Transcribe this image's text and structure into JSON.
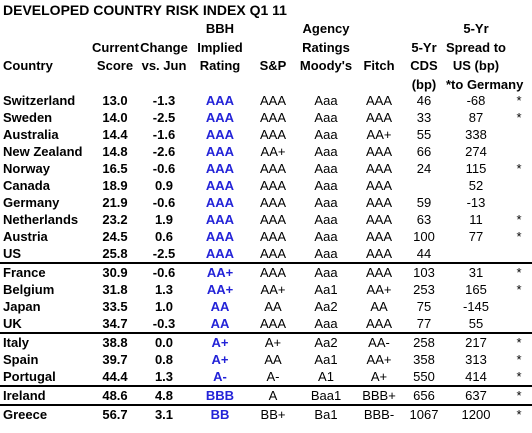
{
  "title": "DEVELOPED COUNTRY RISK INDEX Q1 11",
  "header": {
    "group_label": [
      "Agency",
      "Ratings"
    ],
    "columns": [
      [
        "Country"
      ],
      [
        "Current",
        "Score"
      ],
      [
        "Change",
        "vs. Jun"
      ],
      [
        "BBH",
        "Implied",
        "Rating"
      ],
      [
        "S&P"
      ],
      [
        "Moody's"
      ],
      [
        "Fitch"
      ],
      [
        "5-Yr",
        "CDS",
        "(bp)"
      ],
      [
        "5-Yr",
        "Spread to",
        "US (bp)",
        "*to Germany"
      ]
    ]
  },
  "table": {
    "groups": [
      {
        "rows": [
          [
            "Switzerland",
            "13.0",
            "-1.3",
            "AAA",
            "AAA",
            "Aaa",
            "AAA",
            "46",
            "-68",
            "*"
          ],
          [
            "Sweden",
            "14.0",
            "-2.5",
            "AAA",
            "AAA",
            "Aaa",
            "AAA",
            "33",
            "87",
            "*"
          ],
          [
            "Australia",
            "14.4",
            "-1.6",
            "AAA",
            "AAA",
            "Aaa",
            "AA+",
            "55",
            "338",
            null
          ],
          [
            "New Zealand",
            "14.8",
            "-2.6",
            "AAA",
            "AA+",
            "Aaa",
            "AAA",
            "66",
            "274",
            null
          ],
          [
            "Norway",
            "16.5",
            "-0.6",
            "AAA",
            "AAA",
            "Aaa",
            "AAA",
            "24",
            "115",
            "*"
          ],
          [
            "Canada",
            "18.9",
            "0.9",
            "AAA",
            "AAA",
            "Aaa",
            "AAA",
            null,
            "52",
            null
          ],
          [
            "Germany",
            "21.9",
            "-0.6",
            "AAA",
            "AAA",
            "Aaa",
            "AAA",
            "59",
            "-13",
            null
          ],
          [
            "Netherlands",
            "23.2",
            "1.9",
            "AAA",
            "AAA",
            "Aaa",
            "AAA",
            "63",
            "11",
            "*"
          ],
          [
            "Austria",
            "24.5",
            "0.6",
            "AAA",
            "AAA",
            "Aaa",
            "AAA",
            "100",
            "77",
            "*"
          ],
          [
            "US",
            "25.8",
            "-2.5",
            "AAA",
            "AAA",
            "Aaa",
            "AAA",
            "44",
            null,
            null
          ]
        ]
      },
      {
        "rows": [
          [
            "France",
            "30.9",
            "-0.6",
            "AA+",
            "AAA",
            "Aaa",
            "AAA",
            "103",
            "31",
            "*"
          ],
          [
            "Belgium",
            "31.8",
            "1.3",
            "AA+",
            "AA+",
            "Aa1",
            "AA+",
            "253",
            "165",
            "*"
          ],
          [
            "Japan",
            "33.5",
            "1.0",
            "AA",
            "AA",
            "Aa2",
            "AA",
            "75",
            "-145",
            null
          ],
          [
            "UK",
            "34.7",
            "-0.3",
            "AA",
            "AAA",
            "Aaa",
            "AAA",
            "77",
            "55",
            null
          ]
        ]
      },
      {
        "rows": [
          [
            "Italy",
            "38.8",
            "0.0",
            "A+",
            "A+",
            "Aa2",
            "AA-",
            "258",
            "217",
            "*"
          ],
          [
            "Spain",
            "39.7",
            "0.8",
            "A+",
            "AA",
            "Aa1",
            "AA+",
            "358",
            "313",
            "*"
          ],
          [
            "Portugal",
            "44.4",
            "1.3",
            "A-",
            "A-",
            "A1",
            "A+",
            "550",
            "414",
            "*"
          ]
        ]
      },
      {
        "rows": [
          [
            "Ireland",
            "48.6",
            "4.8",
            "BBB",
            "A",
            "Baa1",
            "BBB+",
            "656",
            "637",
            "*"
          ]
        ]
      },
      {
        "rows": [
          [
            "Greece",
            "56.7",
            "3.1",
            "BB",
            "BB+",
            "Ba1",
            "BBB-",
            "1067",
            "1200",
            "*"
          ]
        ]
      }
    ]
  }
}
